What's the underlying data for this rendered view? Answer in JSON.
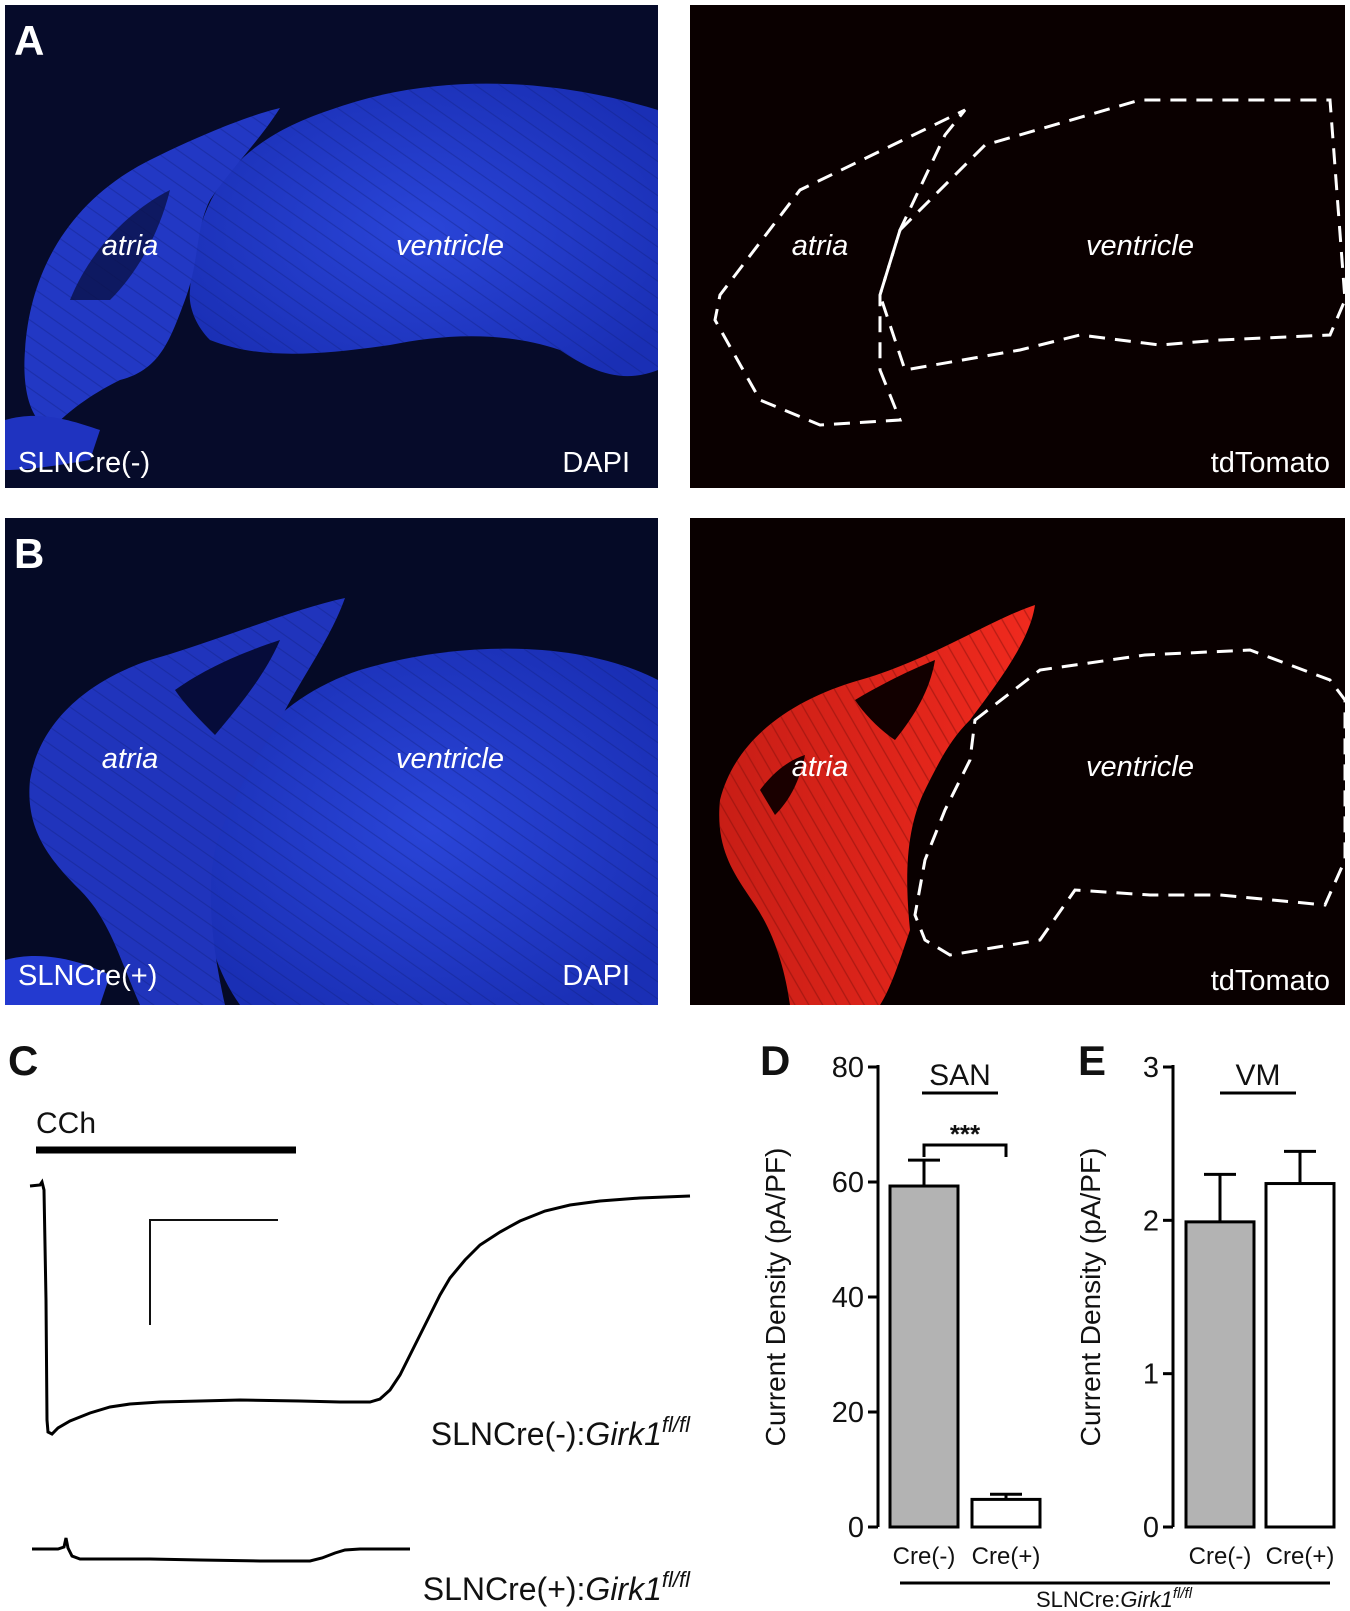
{
  "panels": {
    "A": {
      "letter": "A",
      "left": {
        "region1": "atria",
        "region2": "ventricle",
        "genotype": "SLNCre(-)",
        "stain": "DAPI"
      },
      "right": {
        "region1": "atria",
        "region2": "ventricle",
        "stain": "tdTomato"
      }
    },
    "B": {
      "letter": "B",
      "left": {
        "region1": "atria",
        "region2": "ventricle",
        "genotype": "SLNCre(+)",
        "stain": "DAPI"
      },
      "right": {
        "region1": "atria",
        "region2": "ventricle",
        "stain": "tdTomato"
      }
    },
    "C": {
      "letter": "C",
      "drug": "CCh",
      "trace1_label_prefix": "SLNCre(-):",
      "trace2_label_prefix": "SLNCre(+):",
      "gene": "Girk1",
      "allele": "fl/fl"
    },
    "D": {
      "letter": "D"
    },
    "E": {
      "letter": "E"
    },
    "genotype_prefix": "SLNCre:",
    "genotype_gene": "Girk1",
    "genotype_allele": "fl/fl"
  },
  "colors": {
    "dapi_blue": "#1e35c8",
    "tdtomato_red": "#e8251b",
    "bar_gray": "#b3b3b3",
    "bar_white": "#ffffff"
  },
  "chart_data": [
    {
      "type": "bar",
      "panel": "D",
      "title": "SAN",
      "ylabel": "Current Density (pA/PF)",
      "ylim": [
        0,
        80
      ],
      "yticks": [
        "0",
        "20",
        "40",
        "60",
        "80"
      ],
      "categories": [
        "Cre(-)",
        "Cre(+)"
      ],
      "values": [
        59.3,
        4.8
      ],
      "errors": [
        4.5,
        0.9
      ],
      "bar_colors": [
        "#b3b3b3",
        "#ffffff"
      ],
      "significance": "***"
    },
    {
      "type": "bar",
      "panel": "E",
      "title": "VM",
      "ylabel": "Current Density (pA/PF)",
      "ylim": [
        0,
        3
      ],
      "yticks": [
        "0",
        "1",
        "2",
        "3"
      ],
      "categories": [
        "Cre(-)",
        "Cre(+)"
      ],
      "values": [
        1.99,
        2.24
      ],
      "errors": [
        0.31,
        0.21
      ],
      "bar_colors": [
        "#b3b3b3",
        "#ffffff"
      ]
    }
  ]
}
